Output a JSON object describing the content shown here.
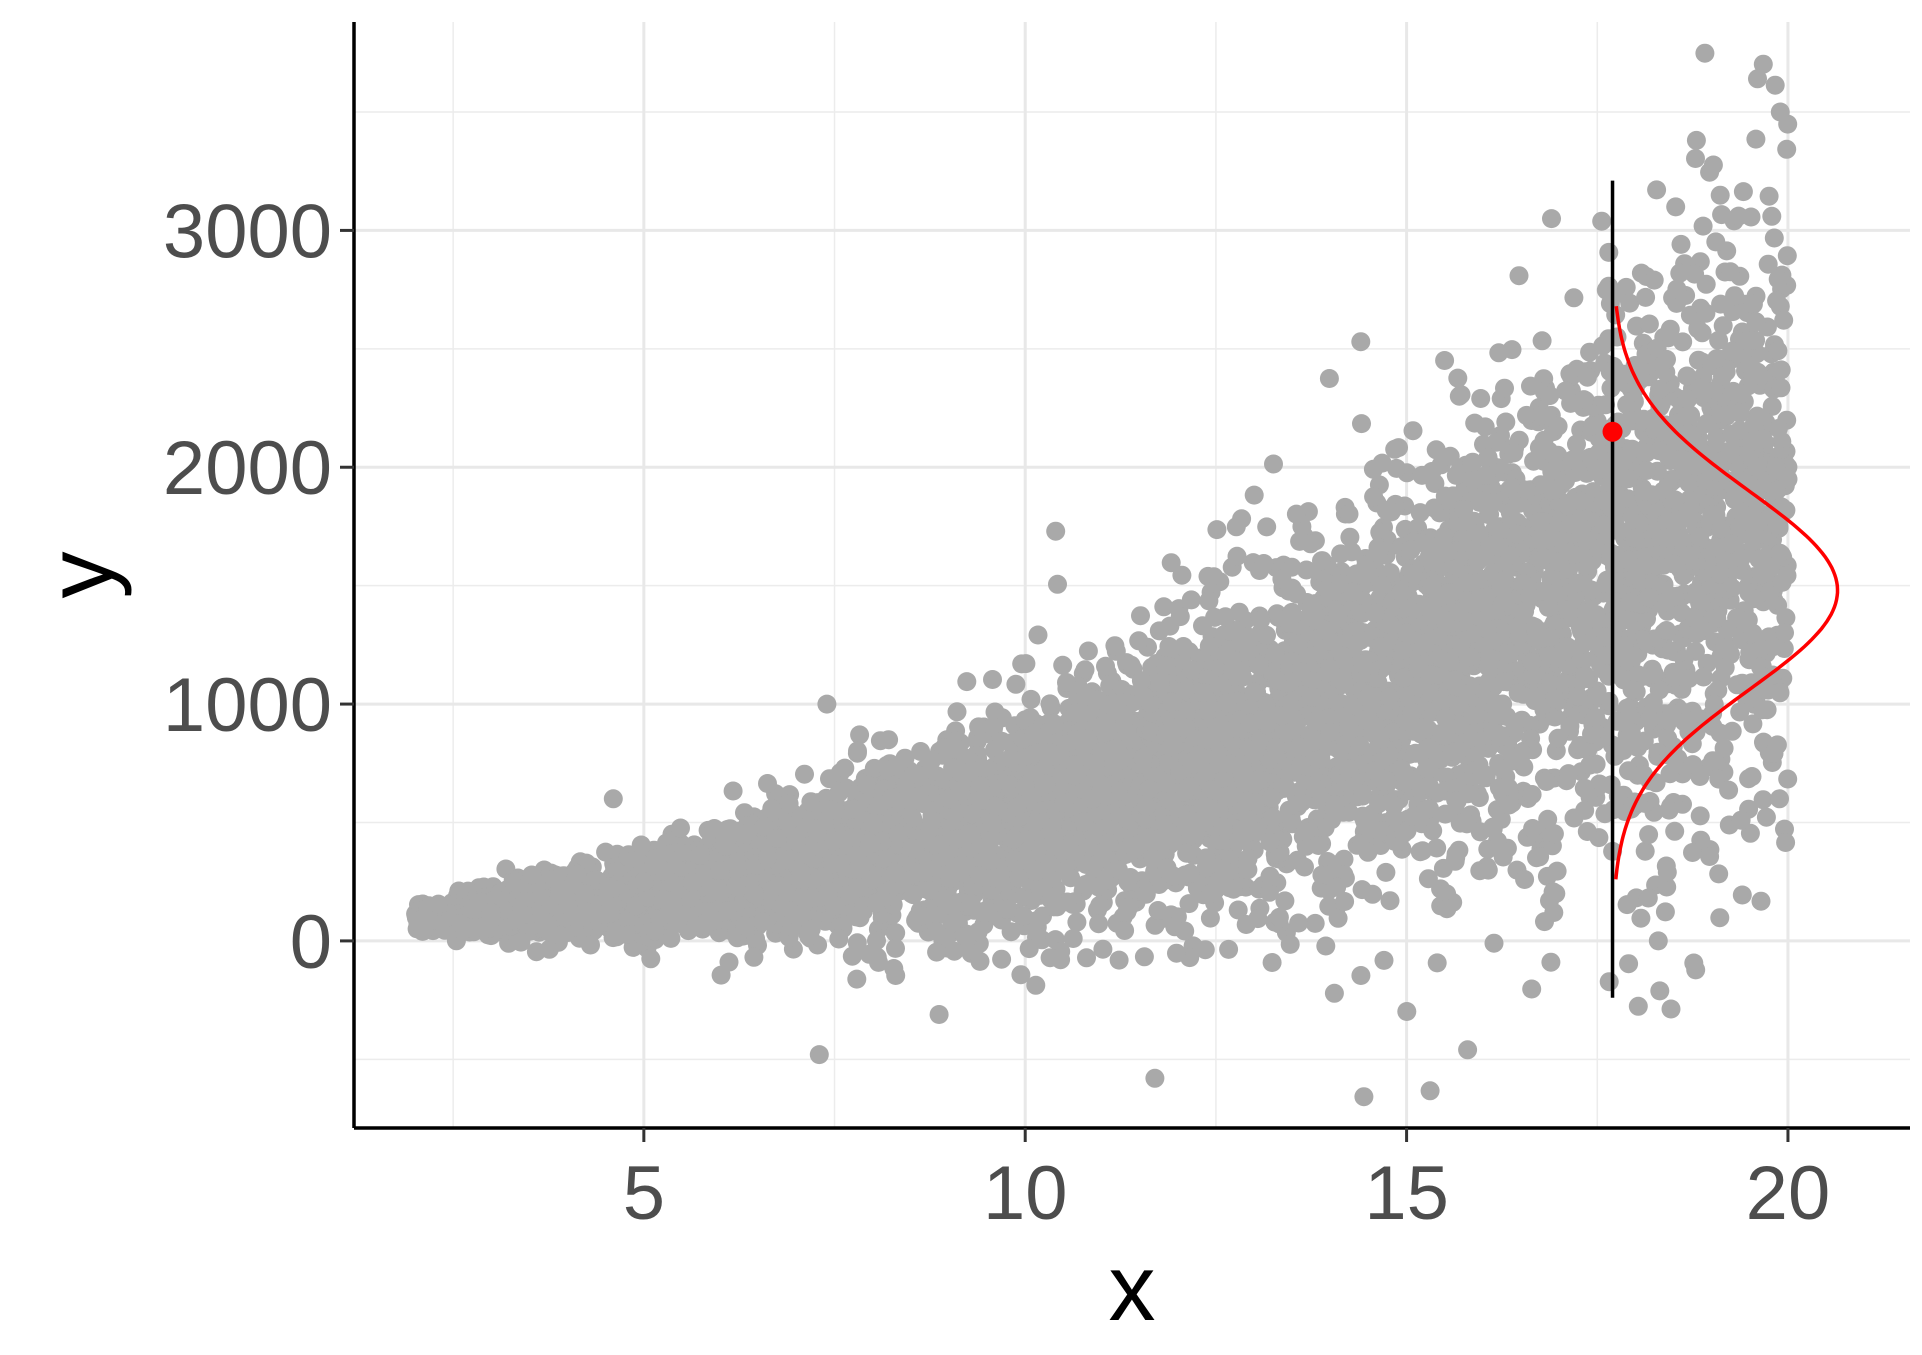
{
  "chart_data": {
    "type": "scatter",
    "xlabel": "x",
    "ylabel": "y",
    "xlim": [
      1.2,
      21.6
    ],
    "ylim": [
      -790,
      3880
    ],
    "xticks": [
      5,
      10,
      15,
      20
    ],
    "xtick_labels": [
      "5",
      "10",
      "15",
      "20"
    ],
    "yticks": [
      0,
      1000,
      2000,
      3000
    ],
    "ytick_labels": [
      "0",
      "1000",
      "2000",
      "3000"
    ],
    "grid": true,
    "legend": "none",
    "point_color": "#a9a9a9",
    "series": [
      {
        "type": "scatter",
        "x_range": [
          2,
          20
        ],
        "approx_points": 6500,
        "mean_model": "y = 80 + 4.6*x^2 (approx)",
        "spread_model": "sd = 12*x + 2 (approx)",
        "sample_points": [
          [
            2.1,
            40
          ],
          [
            3,
            120
          ],
          [
            4,
            150
          ],
          [
            5,
            250
          ],
          [
            6,
            300
          ],
          [
            7,
            420
          ],
          [
            8,
            500
          ],
          [
            9,
            600
          ],
          [
            10,
            650
          ],
          [
            11,
            800
          ],
          [
            12,
            900
          ],
          [
            13,
            1050
          ],
          [
            14,
            1150
          ],
          [
            15,
            1300
          ],
          [
            16,
            1450
          ],
          [
            17,
            1600
          ],
          [
            18,
            1700
          ],
          [
            19,
            1800
          ],
          [
            20,
            1950
          ],
          [
            19.6,
            3640
          ],
          [
            19.9,
            3500
          ],
          [
            18.8,
            3380
          ],
          [
            16.9,
            3050
          ],
          [
            14.4,
            2530
          ],
          [
            10.4,
            1730
          ],
          [
            7.4,
            1000
          ],
          [
            4.6,
            600
          ],
          [
            15.8,
            -460
          ],
          [
            11.7,
            -580
          ],
          [
            7.3,
            -480
          ],
          [
            18.3,
            0
          ]
        ]
      },
      {
        "type": "vline",
        "x": 17.7,
        "y_range": [
          -240,
          3210
        ],
        "color": "#000000"
      },
      {
        "type": "density",
        "x_base": 17.7,
        "mean": 1480,
        "sd": 420,
        "y_range": [
          260,
          2680
        ],
        "peak_x": 20.65,
        "color": "#ff0000"
      },
      {
        "type": "point",
        "x": 17.7,
        "y": 2150,
        "color": "#ff0000"
      }
    ]
  }
}
